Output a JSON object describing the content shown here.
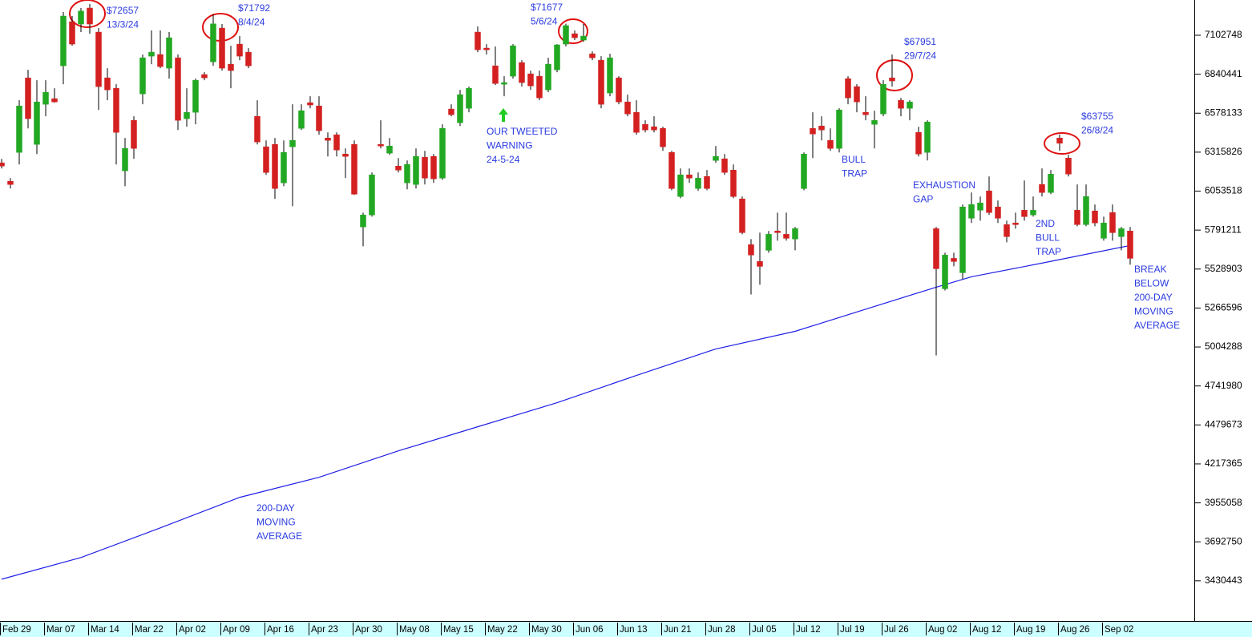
{
  "chart_data": {
    "type": "candlestick",
    "up_color": "#22a822",
    "down_color": "#d42020",
    "ylim": [
      3160000,
      7340000
    ],
    "yticks": [
      3430443,
      3692750,
      3955058,
      4217365,
      4479673,
      4741980,
      5004288,
      5266596,
      5528903,
      5791211,
      6053518,
      6315826,
      6578133,
      6840441,
      7102748
    ],
    "categories": [
      "Feb 29",
      null,
      null,
      null,
      null,
      "Mar 07",
      null,
      null,
      null,
      null,
      "Mar 14",
      null,
      null,
      null,
      null,
      "Mar 22",
      null,
      null,
      null,
      null,
      "Apr 02",
      null,
      null,
      null,
      null,
      "Apr 09",
      null,
      null,
      null,
      null,
      "Apr 16",
      null,
      null,
      null,
      null,
      "Apr 23",
      null,
      null,
      null,
      null,
      "Apr 30",
      null,
      null,
      null,
      null,
      "May 08",
      null,
      null,
      null,
      null,
      "May 15",
      null,
      null,
      null,
      null,
      "May 22",
      null,
      null,
      null,
      null,
      "May 30",
      null,
      null,
      null,
      null,
      "Jun 06",
      null,
      null,
      null,
      null,
      "Jun 13",
      null,
      null,
      null,
      null,
      "Jun 21",
      null,
      null,
      null,
      null,
      "Jun 28",
      null,
      null,
      null,
      null,
      "Jul 05",
      null,
      null,
      null,
      null,
      "Jul 12",
      null,
      null,
      null,
      null,
      "Jul 19",
      null,
      null,
      null,
      null,
      "Jul 26",
      null,
      null,
      null,
      null,
      "Aug 02",
      null,
      null,
      null,
      null,
      "Aug 12",
      null,
      null,
      null,
      null,
      "Aug 19",
      null,
      null,
      null,
      null,
      "Aug 26",
      null,
      null,
      null,
      null,
      "Sep 02",
      null,
      null,
      null
    ],
    "ohlc": [
      [
        6244000,
        6271000,
        6206000,
        6222000
      ],
      [
        6120000,
        6141000,
        6071000,
        6098000
      ],
      [
        6314000,
        6665000,
        6233000,
        6627000
      ],
      [
        6816000,
        6870000,
        6476000,
        6541000
      ],
      [
        6368000,
        6800000,
        6303000,
        6654000
      ],
      [
        6638000,
        6800000,
        6557000,
        6719000
      ],
      [
        6676000,
        6746000,
        6649000,
        6654000
      ],
      [
        6897000,
        7259000,
        6773000,
        7232000
      ],
      [
        7194000,
        7232000,
        7032000,
        7043000
      ],
      [
        7178000,
        7286000,
        7124000,
        7265700
      ],
      [
        7286000,
        7313000,
        7113000,
        7178000
      ],
      [
        7124000,
        7151000,
        6600000,
        6757000
      ],
      [
        6816000,
        6881000,
        6665000,
        6735000
      ],
      [
        6746000,
        6773000,
        6233000,
        6449000
      ],
      [
        6190000,
        6411000,
        6087000,
        6341000
      ],
      [
        6530000,
        6557000,
        6271000,
        6341000
      ],
      [
        6708000,
        6973000,
        6638000,
        6951000
      ],
      [
        6962000,
        7135000,
        6908000,
        6989000
      ],
      [
        6973000,
        7135000,
        6881000,
        6892000
      ],
      [
        6881000,
        7124000,
        6811000,
        7086000
      ],
      [
        6951000,
        6973000,
        6465000,
        6530000
      ],
      [
        6541000,
        6746000,
        6487000,
        6584000
      ],
      [
        6584000,
        6811000,
        6503000,
        6800000
      ],
      [
        6838000,
        6854000,
        6800000,
        6816000
      ],
      [
        6924000,
        7243000,
        6897000,
        7179200
      ],
      [
        7151000,
        7178000,
        6865000,
        6881000
      ],
      [
        6908000,
        7032000,
        6746000,
        6865000
      ],
      [
        7043000,
        7097000,
        6935000,
        6962000
      ],
      [
        6989000,
        7016000,
        6881000,
        6897000
      ],
      [
        6557000,
        6665000,
        6368000,
        6384000
      ],
      [
        6352000,
        6395000,
        6163000,
        6179000
      ],
      [
        6368000,
        6411000,
        6001000,
        6071000
      ],
      [
        6109000,
        6395000,
        6087000,
        6314000
      ],
      [
        6352000,
        6638000,
        5952000,
        6395000
      ],
      [
        6476000,
        6638000,
        6465000,
        6595000
      ],
      [
        6649000,
        6692000,
        6611000,
        6633000
      ],
      [
        6627000,
        6692000,
        6433000,
        6460000
      ],
      [
        6411000,
        6449000,
        6287000,
        6395000
      ],
      [
        6433000,
        6449000,
        6287000,
        6330000
      ],
      [
        6303000,
        6341000,
        6141000,
        6287000
      ],
      [
        6368000,
        6395000,
        6028000,
        6033000
      ],
      [
        5812000,
        5909000,
        5682000,
        5893000
      ],
      [
        5893000,
        6179000,
        5882000,
        6163000
      ],
      [
        6368000,
        6530000,
        6341000,
        6357000
      ],
      [
        6309000,
        6411000,
        6298000,
        6357000
      ],
      [
        6222000,
        6276000,
        6179000,
        6195000
      ],
      [
        6109000,
        6260000,
        6066000,
        6233000
      ],
      [
        6098000,
        6341000,
        6071000,
        6287000
      ],
      [
        6282000,
        6325000,
        6098000,
        6141000
      ],
      [
        6287000,
        6303000,
        6109000,
        6136000
      ],
      [
        6141000,
        6503000,
        6130000,
        6476000
      ],
      [
        6606000,
        6638000,
        6557000,
        6568000
      ],
      [
        6514000,
        6735000,
        6492000,
        6703000
      ],
      [
        6611000,
        6757000,
        6584000,
        6746000
      ],
      [
        7124000,
        7162000,
        6989000,
        7005000
      ],
      [
        7016000,
        7043000,
        6973000,
        7005000
      ],
      [
        6897000,
        7027000,
        6768000,
        6778000
      ],
      [
        6773000,
        6827000,
        6692000,
        6784000
      ],
      [
        6827000,
        7043000,
        6811000,
        7032000
      ],
      [
        6919000,
        6935000,
        6757000,
        6784000
      ],
      [
        6843000,
        6865000,
        6735000,
        6762000
      ],
      [
        6827000,
        6865000,
        6665000,
        6681000
      ],
      [
        6735000,
        6951000,
        6719000,
        6908000
      ],
      [
        6870000,
        7043000,
        6854000,
        7038000
      ],
      [
        7043000,
        7180000,
        7027000,
        7167700
      ],
      [
        7113000,
        7135000,
        7070000,
        7086000
      ],
      [
        7070000,
        7178000,
        7059000,
        7097000
      ],
      [
        6978000,
        6994000,
        6935000,
        6951000
      ],
      [
        6935000,
        6962000,
        6611000,
        6638000
      ],
      [
        6714000,
        6978000,
        6692000,
        6951000
      ],
      [
        6816000,
        6827000,
        6638000,
        6654000
      ],
      [
        6654000,
        6703000,
        6557000,
        6573000
      ],
      [
        6584000,
        6665000,
        6433000,
        6449000
      ],
      [
        6503000,
        6530000,
        6449000,
        6465000
      ],
      [
        6487000,
        6557000,
        6449000,
        6465000
      ],
      [
        6476000,
        6487000,
        6325000,
        6352000
      ],
      [
        6314000,
        6325000,
        6060000,
        6071000
      ],
      [
        6017000,
        6206000,
        6006000,
        6163000
      ],
      [
        6163000,
        6206000,
        6109000,
        6141000
      ],
      [
        6071000,
        6179000,
        6055000,
        6141000
      ],
      [
        6152000,
        6195000,
        6060000,
        6071000
      ],
      [
        6260000,
        6357000,
        6244000,
        6287000
      ],
      [
        6271000,
        6303000,
        6163000,
        6179000
      ],
      [
        6195000,
        6233000,
        6006000,
        6017000
      ],
      [
        6001000,
        6017000,
        5763000,
        5774000
      ],
      [
        5693000,
        5731000,
        5358000,
        5623000
      ],
      [
        5580000,
        5774000,
        5423000,
        5547000
      ],
      [
        5655000,
        5785000,
        5639000,
        5763000
      ],
      [
        5785000,
        5909000,
        5720000,
        5774000
      ],
      [
        5763000,
        5909000,
        5720000,
        5736000
      ],
      [
        5731000,
        5812000,
        5655000,
        5801000
      ],
      [
        6071000,
        6314000,
        6060000,
        6303000
      ],
      [
        6476000,
        6584000,
        6276000,
        6438000
      ],
      [
        6492000,
        6557000,
        6395000,
        6465000
      ],
      [
        6395000,
        6476000,
        6325000,
        6341000
      ],
      [
        6341000,
        6611000,
        6314000,
        6600000
      ],
      [
        6811000,
        6827000,
        6638000,
        6681000
      ],
      [
        6757000,
        6773000,
        6584000,
        6654000
      ],
      [
        6584000,
        6692000,
        6530000,
        6568000
      ],
      [
        6503000,
        6595000,
        6341000,
        6530000
      ],
      [
        6573000,
        6800000,
        6557000,
        6773000
      ],
      [
        6816000,
        6973000,
        6757000,
        6795100
      ],
      [
        6665000,
        6681000,
        6557000,
        6611000
      ],
      [
        6611000,
        6665000,
        6530000,
        6654000
      ],
      [
        6449000,
        6487000,
        6287000,
        6303000
      ],
      [
        6314000,
        6530000,
        6260000,
        6519000
      ],
      [
        5801000,
        5812000,
        4948000,
        5531000
      ],
      [
        5396000,
        5639000,
        5385000,
        5623000
      ],
      [
        5601000,
        5639000,
        5547000,
        5580000
      ],
      [
        5504000,
        5963000,
        5461000,
        5947000
      ],
      [
        5871000,
        6044000,
        5839000,
        5963000
      ],
      [
        5925000,
        6017000,
        5855000,
        5974000
      ],
      [
        6055000,
        6152000,
        5893000,
        5909000
      ],
      [
        5947000,
        5990000,
        5839000,
        5871000
      ],
      [
        5828000,
        5855000,
        5709000,
        5747000
      ],
      [
        5839000,
        5909000,
        5801000,
        5828000
      ],
      [
        5925000,
        6125000,
        5855000,
        5882000
      ],
      [
        5893000,
        6017000,
        5882000,
        5925000
      ],
      [
        6098000,
        6206000,
        6017000,
        6044000
      ],
      [
        6044000,
        6195000,
        6033000,
        6168000
      ],
      [
        6411000,
        6433000,
        6325000,
        6375500
      ],
      [
        6276000,
        6298000,
        6152000,
        6168000
      ],
      [
        5925000,
        6098000,
        5817000,
        5828000
      ],
      [
        5828000,
        6098000,
        5817000,
        6017000
      ],
      [
        5920000,
        5963000,
        5817000,
        5839000
      ],
      [
        5736000,
        5882000,
        5720000,
        5839000
      ],
      [
        5909000,
        5963000,
        5720000,
        5774000
      ],
      [
        5747000,
        5812000,
        5655000,
        5801000
      ],
      [
        5785000,
        5812000,
        5558000,
        5601000
      ]
    ],
    "moving_average": {
      "color": "#2020e6",
      "x": [
        0,
        9,
        18,
        27,
        36,
        45,
        54,
        63,
        72,
        81,
        90,
        99,
        106,
        110,
        118,
        128
      ],
      "values": [
        3441200,
        3587000,
        3786800,
        3992000,
        4127000,
        4305200,
        4467200,
        4629200,
        4812800,
        4991000,
        5109800,
        5277200,
        5406800,
        5477000,
        5568800,
        5687600
      ]
    },
    "annotations": [
      [
        "$72657",
        "13/3/24"
      ],
      [
        "$71792",
        "8/4/24"
      ],
      [
        "$71677",
        "5/6/24"
      ],
      [
        "OUR TWEETED",
        "WARNING",
        "24-5-24"
      ],
      [
        "$67951",
        "29/7/24"
      ],
      [
        "BULL",
        "TRAP"
      ],
      [
        "EXHAUSTION",
        "GAP"
      ],
      [
        "$63755",
        "26/8/24"
      ],
      [
        "2ND",
        "BULL",
        "TRAP"
      ],
      [
        "BREAK",
        "BELOW",
        "200-DAY",
        "MOVING",
        "AVERAGE"
      ],
      [
        "200-DAY",
        "MOVING",
        "AVERAGE"
      ]
    ]
  }
}
